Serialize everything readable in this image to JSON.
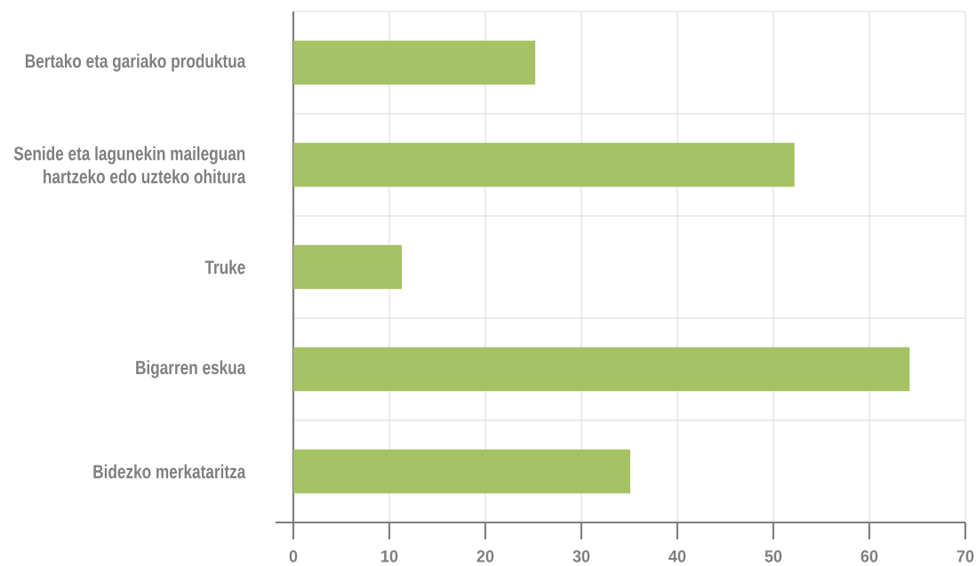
{
  "chart_data": {
    "type": "bar",
    "orientation": "horizontal",
    "categories": [
      "Bertako eta gariako produktua",
      "Senide eta lagunekin maileguan hartzeko edo uzteko ohitura",
      "Truke",
      "Bigarren eskua",
      "Bidezko merkataritza"
    ],
    "values": [
      25.2,
      52.2,
      11.3,
      64.2,
      35.1
    ],
    "color": "#a5c265",
    "xlim": [
      0,
      70
    ],
    "xticks": [
      0,
      10,
      20,
      30,
      40,
      50,
      60,
      70
    ],
    "grid": true
  }
}
